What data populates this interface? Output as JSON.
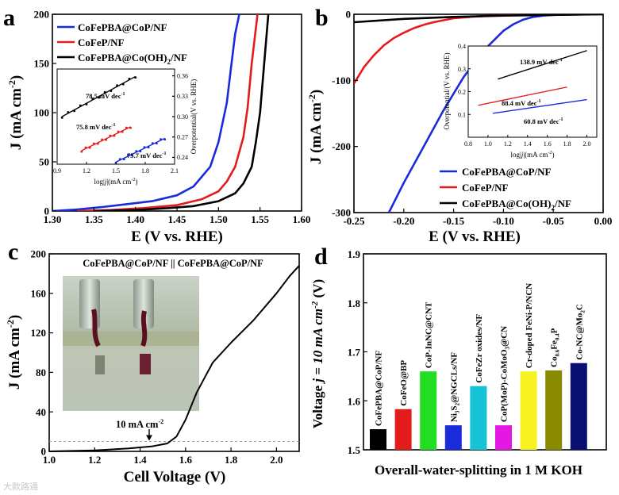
{
  "colors": {
    "blue": "#1a2bdc",
    "red": "#e31b1b",
    "black": "#000000",
    "green": "#22dd22",
    "cyan": "#15c4d4",
    "magenta": "#e319e3",
    "yellow": "#f6f321",
    "olive": "#8a8a00",
    "navy": "#0a1070",
    "gray": "#9a9a9a"
  },
  "watermark": "大款路通",
  "panels": {
    "a": {
      "letter": "a"
    },
    "b": {
      "letter": "b"
    },
    "c": {
      "letter": "c"
    },
    "d": {
      "letter": "d"
    }
  },
  "chart_data": [
    {
      "id": "a",
      "type": "line",
      "xlabel": "E (V vs. RHE)",
      "ylabel": "J (mA cm-2)",
      "xlim": [
        1.3,
        1.6
      ],
      "ylim": [
        0,
        200
      ],
      "xticks": [
        "1.30",
        "1.35",
        "1.40",
        "1.45",
        "1.50",
        "1.55",
        "1.60"
      ],
      "yticks": [
        "0",
        "50",
        "100",
        "150",
        "200"
      ],
      "legend_loc": "top-left",
      "series": [
        {
          "name": "CoFePBA@CoP/NF",
          "color": "blue",
          "x": [
            1.3,
            1.33,
            1.36,
            1.39,
            1.42,
            1.45,
            1.47,
            1.49,
            1.5,
            1.51,
            1.515,
            1.52,
            1.525
          ],
          "y": [
            0,
            1.5,
            4,
            7,
            10,
            16,
            25,
            45,
            70,
            110,
            145,
            180,
            200
          ]
        },
        {
          "name": "CoFeP/NF",
          "color": "red",
          "x": [
            1.33,
            1.37,
            1.41,
            1.45,
            1.48,
            1.5,
            1.51,
            1.52,
            1.53,
            1.535,
            1.54,
            1.547
          ],
          "y": [
            0,
            1,
            3,
            6,
            12,
            20,
            30,
            45,
            75,
            105,
            150,
            200
          ]
        },
        {
          "name": "CoFePBA@Co(OH)2/NF",
          "color": "black",
          "x": [
            1.35,
            1.4,
            1.44,
            1.47,
            1.5,
            1.52,
            1.53,
            1.54,
            1.545,
            1.55,
            1.555,
            1.56
          ],
          "y": [
            0,
            1,
            3,
            5,
            10,
            18,
            28,
            45,
            70,
            100,
            150,
            200
          ]
        }
      ],
      "inset": {
        "xlabel": "log|j|(mA cm-2)",
        "ylabel": "Overpotential(V vs. RHE)",
        "xlim": [
          0.9,
          2.1
        ],
        "ylim": [
          0.23,
          0.37
        ],
        "xticks": [
          "0.9",
          "1.2",
          "1.5",
          "1.8",
          "2.1"
        ],
        "yticks": [
          "0.24",
          "0.27",
          "0.30",
          "0.33",
          "0.36"
        ],
        "series": [
          {
            "name": "CoFePBA@Co(OH)2/NF",
            "color": "black",
            "x": [
              0.95,
              1.7
            ],
            "y": [
              0.3,
              0.359
            ],
            "label": "78.5 mV dec-1"
          },
          {
            "name": "CoFeP/NF",
            "color": "red",
            "x": [
              1.15,
              1.65
            ],
            "y": [
              0.25,
              0.285
            ],
            "label": "75.8 mV dec-1"
          },
          {
            "name": "CoFePBA@CoP/NF",
            "color": "blue",
            "x": [
              1.5,
              2.0
            ],
            "y": [
              0.233,
              0.268
            ],
            "label": "75.7 mV dec-1"
          }
        ]
      }
    },
    {
      "id": "b",
      "type": "line",
      "xlabel": "E (V vs. RHE)",
      "ylabel": "J (mA cm-2)",
      "xlim": [
        -0.25,
        0.0
      ],
      "ylim": [
        -300,
        0
      ],
      "xticks": [
        "-0.25",
        "-0.20",
        "-0.15",
        "-0.10",
        "-0.05",
        "0.00"
      ],
      "yticks": [
        "0",
        "-100",
        "-200",
        "-300"
      ],
      "legend_loc": "bottom-right",
      "series": [
        {
          "name": "CoFePBA@CoP/NF",
          "color": "blue",
          "x": [
            -0.215,
            -0.2,
            -0.18,
            -0.16,
            -0.14,
            -0.12,
            -0.1,
            -0.09,
            -0.08,
            -0.07,
            -0.06,
            -0.05,
            -0.04,
            -0.02,
            0.0
          ],
          "y": [
            -300,
            -255,
            -200,
            -145,
            -95,
            -55,
            -25,
            -15,
            -8,
            -4,
            -2,
            -1,
            -0.5,
            -0.2,
            0
          ]
        },
        {
          "name": "CoFeP/NF",
          "color": "red",
          "x": [
            -0.25,
            -0.24,
            -0.23,
            -0.22,
            -0.21,
            -0.2,
            -0.19,
            -0.18,
            -0.17,
            -0.16,
            -0.15,
            -0.13,
            -0.11,
            -0.08,
            -0.05,
            0.0
          ],
          "y": [
            -105,
            -80,
            -62,
            -47,
            -36,
            -28,
            -21,
            -16,
            -12,
            -9,
            -6,
            -3.5,
            -2,
            -1,
            -0.5,
            0
          ]
        },
        {
          "name": "CoFePBA@Co(OH)2/NF",
          "color": "black",
          "x": [
            -0.25,
            -0.2,
            -0.15,
            -0.1,
            -0.05,
            0.0
          ],
          "y": [
            -12,
            -7,
            -4,
            -2,
            -1,
            0
          ]
        }
      ],
      "inset": {
        "xlabel": "log|j|(mA cm-2)",
        "ylabel": "Overpotential/(V vs. RHE)",
        "xlim": [
          0.8,
          2.1
        ],
        "ylim": [
          0.0,
          0.4
        ],
        "xticks": [
          "0.8",
          "1.0",
          "1.2",
          "1.4",
          "1.6",
          "1.8",
          "2.0"
        ],
        "yticks": [
          "0.1",
          "0.2",
          "0.3",
          "0.4"
        ],
        "series": [
          {
            "name": "CoFePBA@Co(OH)2/NF",
            "color": "black",
            "x": [
              1.1,
              2.0
            ],
            "y": [
              0.255,
              0.38
            ],
            "label": "138.9 mV dec-1"
          },
          {
            "name": "CoFeP/NF",
            "color": "red",
            "x": [
              0.9,
              1.8
            ],
            "y": [
              0.14,
              0.22
            ],
            "label": "88.4 mV dec-1"
          },
          {
            "name": "CoFePBA@CoP/NF",
            "color": "blue",
            "x": [
              1.05,
              2.0
            ],
            "y": [
              0.105,
              0.165
            ],
            "label": "60.8 mV dec-1"
          }
        ]
      }
    },
    {
      "id": "c",
      "type": "line",
      "title": "CoFePBA@CoP/NF || CoFePBA@CoP/NF",
      "xlabel": "Cell Voltage (V)",
      "ylabel": "J (mA cm-2)",
      "xlim": [
        1.0,
        2.1
      ],
      "ylim": [
        0,
        200
      ],
      "xticks": [
        "1.0",
        "1.2",
        "1.4",
        "1.6",
        "1.8",
        "2.0"
      ],
      "yticks": [
        "0",
        "40",
        "80",
        "120",
        "160",
        "200"
      ],
      "annotation": "10 mA cm-2",
      "reference_y": 10,
      "arrow_x": 1.44,
      "series": [
        {
          "name": "CoFePBA@CoP/NF || CoFePBA@CoP/NF",
          "color": "black",
          "x": [
            1.0,
            1.2,
            1.35,
            1.45,
            1.52,
            1.56,
            1.6,
            1.65,
            1.72,
            1.8,
            1.9,
            2.0,
            2.06,
            2.1
          ],
          "y": [
            0,
            1,
            3,
            5,
            8,
            15,
            32,
            60,
            90,
            110,
            133,
            160,
            178,
            188
          ]
        }
      ]
    },
    {
      "id": "d",
      "type": "bar",
      "title": "Overall-water-splitting in 1 M KOH",
      "ylabel": "Voltage j = 10 mA cm-2 (V)",
      "ylim": [
        1.5,
        1.9
      ],
      "yticks": [
        "1.5",
        "1.6",
        "1.7",
        "1.8",
        "1.9"
      ],
      "categories": [
        "CoFePBA@CoP/NF",
        "CoFeO@BP",
        "CoP-InNC@CNT",
        "Ni3S2@NGCLs/NF",
        "CoFeZr oxides/NF",
        "CoP(MoP)-CoMoO3@CN",
        "Cr-doped FeNi-P/NCN",
        "Co0.6Fe0.4P",
        "Co-NC@Mo2C"
      ],
      "values": [
        1.542,
        1.583,
        1.66,
        1.55,
        1.63,
        1.55,
        1.66,
        1.662,
        1.677
      ],
      "bar_colors": [
        "black",
        "red",
        "green",
        "blue",
        "cyan",
        "magenta",
        "yellow",
        "olive",
        "navy"
      ]
    }
  ]
}
